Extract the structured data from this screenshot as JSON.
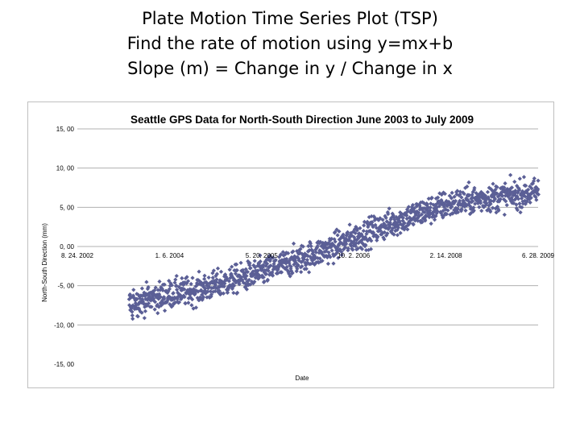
{
  "slide": {
    "title_lines": [
      "Plate Motion Time Series Plot (TSP)",
      "Find the rate of motion using y=mx+b",
      "Slope (m) = Change in y / Change in x"
    ]
  },
  "chart_data": {
    "type": "scatter",
    "title": "Seattle GPS Data for North-South Direction June 2003 to July 2009",
    "xlabel": "Date",
    "ylabel": "North-South Direction (mm)",
    "xlim": [
      "2002-08-24",
      "2009-06-28"
    ],
    "ylim": [
      -15,
      15
    ],
    "x_tick_labels": [
      "8. 24. 2002",
      "1. 6. 2004",
      "5. 20. 2005",
      "10. 2. 2006",
      "2. 14. 2008",
      "6. 28. 2009"
    ],
    "x_tick_dates": [
      "2002-08-24",
      "2004-01-06",
      "2005-05-20",
      "2006-10-02",
      "2008-02-14",
      "2009-06-28"
    ],
    "y_ticks": [
      15,
      10,
      5,
      0,
      -5,
      -10,
      -15
    ],
    "y_tick_labels": [
      "15, 00",
      "10, 00",
      "5, 00",
      "0, 00",
      "-5, 00",
      "-10, 00",
      "-15, 00"
    ],
    "grid": true,
    "marker_color": "#5b5f96",
    "trend_points": [
      {
        "x": "2003-06-01",
        "y": -7.2
      },
      {
        "x": "2003-10-01",
        "y": -6.6
      },
      {
        "x": "2004-02-01",
        "y": -6.0
      },
      {
        "x": "2004-06-01",
        "y": -5.6
      },
      {
        "x": "2004-10-01",
        "y": -4.8
      },
      {
        "x": "2005-02-01",
        "y": -4.0
      },
      {
        "x": "2005-06-01",
        "y": -3.2
      },
      {
        "x": "2005-10-01",
        "y": -2.2
      },
      {
        "x": "2006-02-01",
        "y": -1.2
      },
      {
        "x": "2006-06-01",
        "y": -0.2
      },
      {
        "x": "2006-10-01",
        "y": 1.0
      },
      {
        "x": "2007-02-01",
        "y": 2.2
      },
      {
        "x": "2007-06-01",
        "y": 3.3
      },
      {
        "x": "2007-10-01",
        "y": 4.3
      },
      {
        "x": "2008-02-01",
        "y": 5.2
      },
      {
        "x": "2008-06-01",
        "y": 5.8
      },
      {
        "x": "2008-10-01",
        "y": 6.2
      },
      {
        "x": "2009-02-01",
        "y": 6.5
      },
      {
        "x": "2009-07-01",
        "y": 6.9
      }
    ],
    "scatter_spread": 1.3
  }
}
